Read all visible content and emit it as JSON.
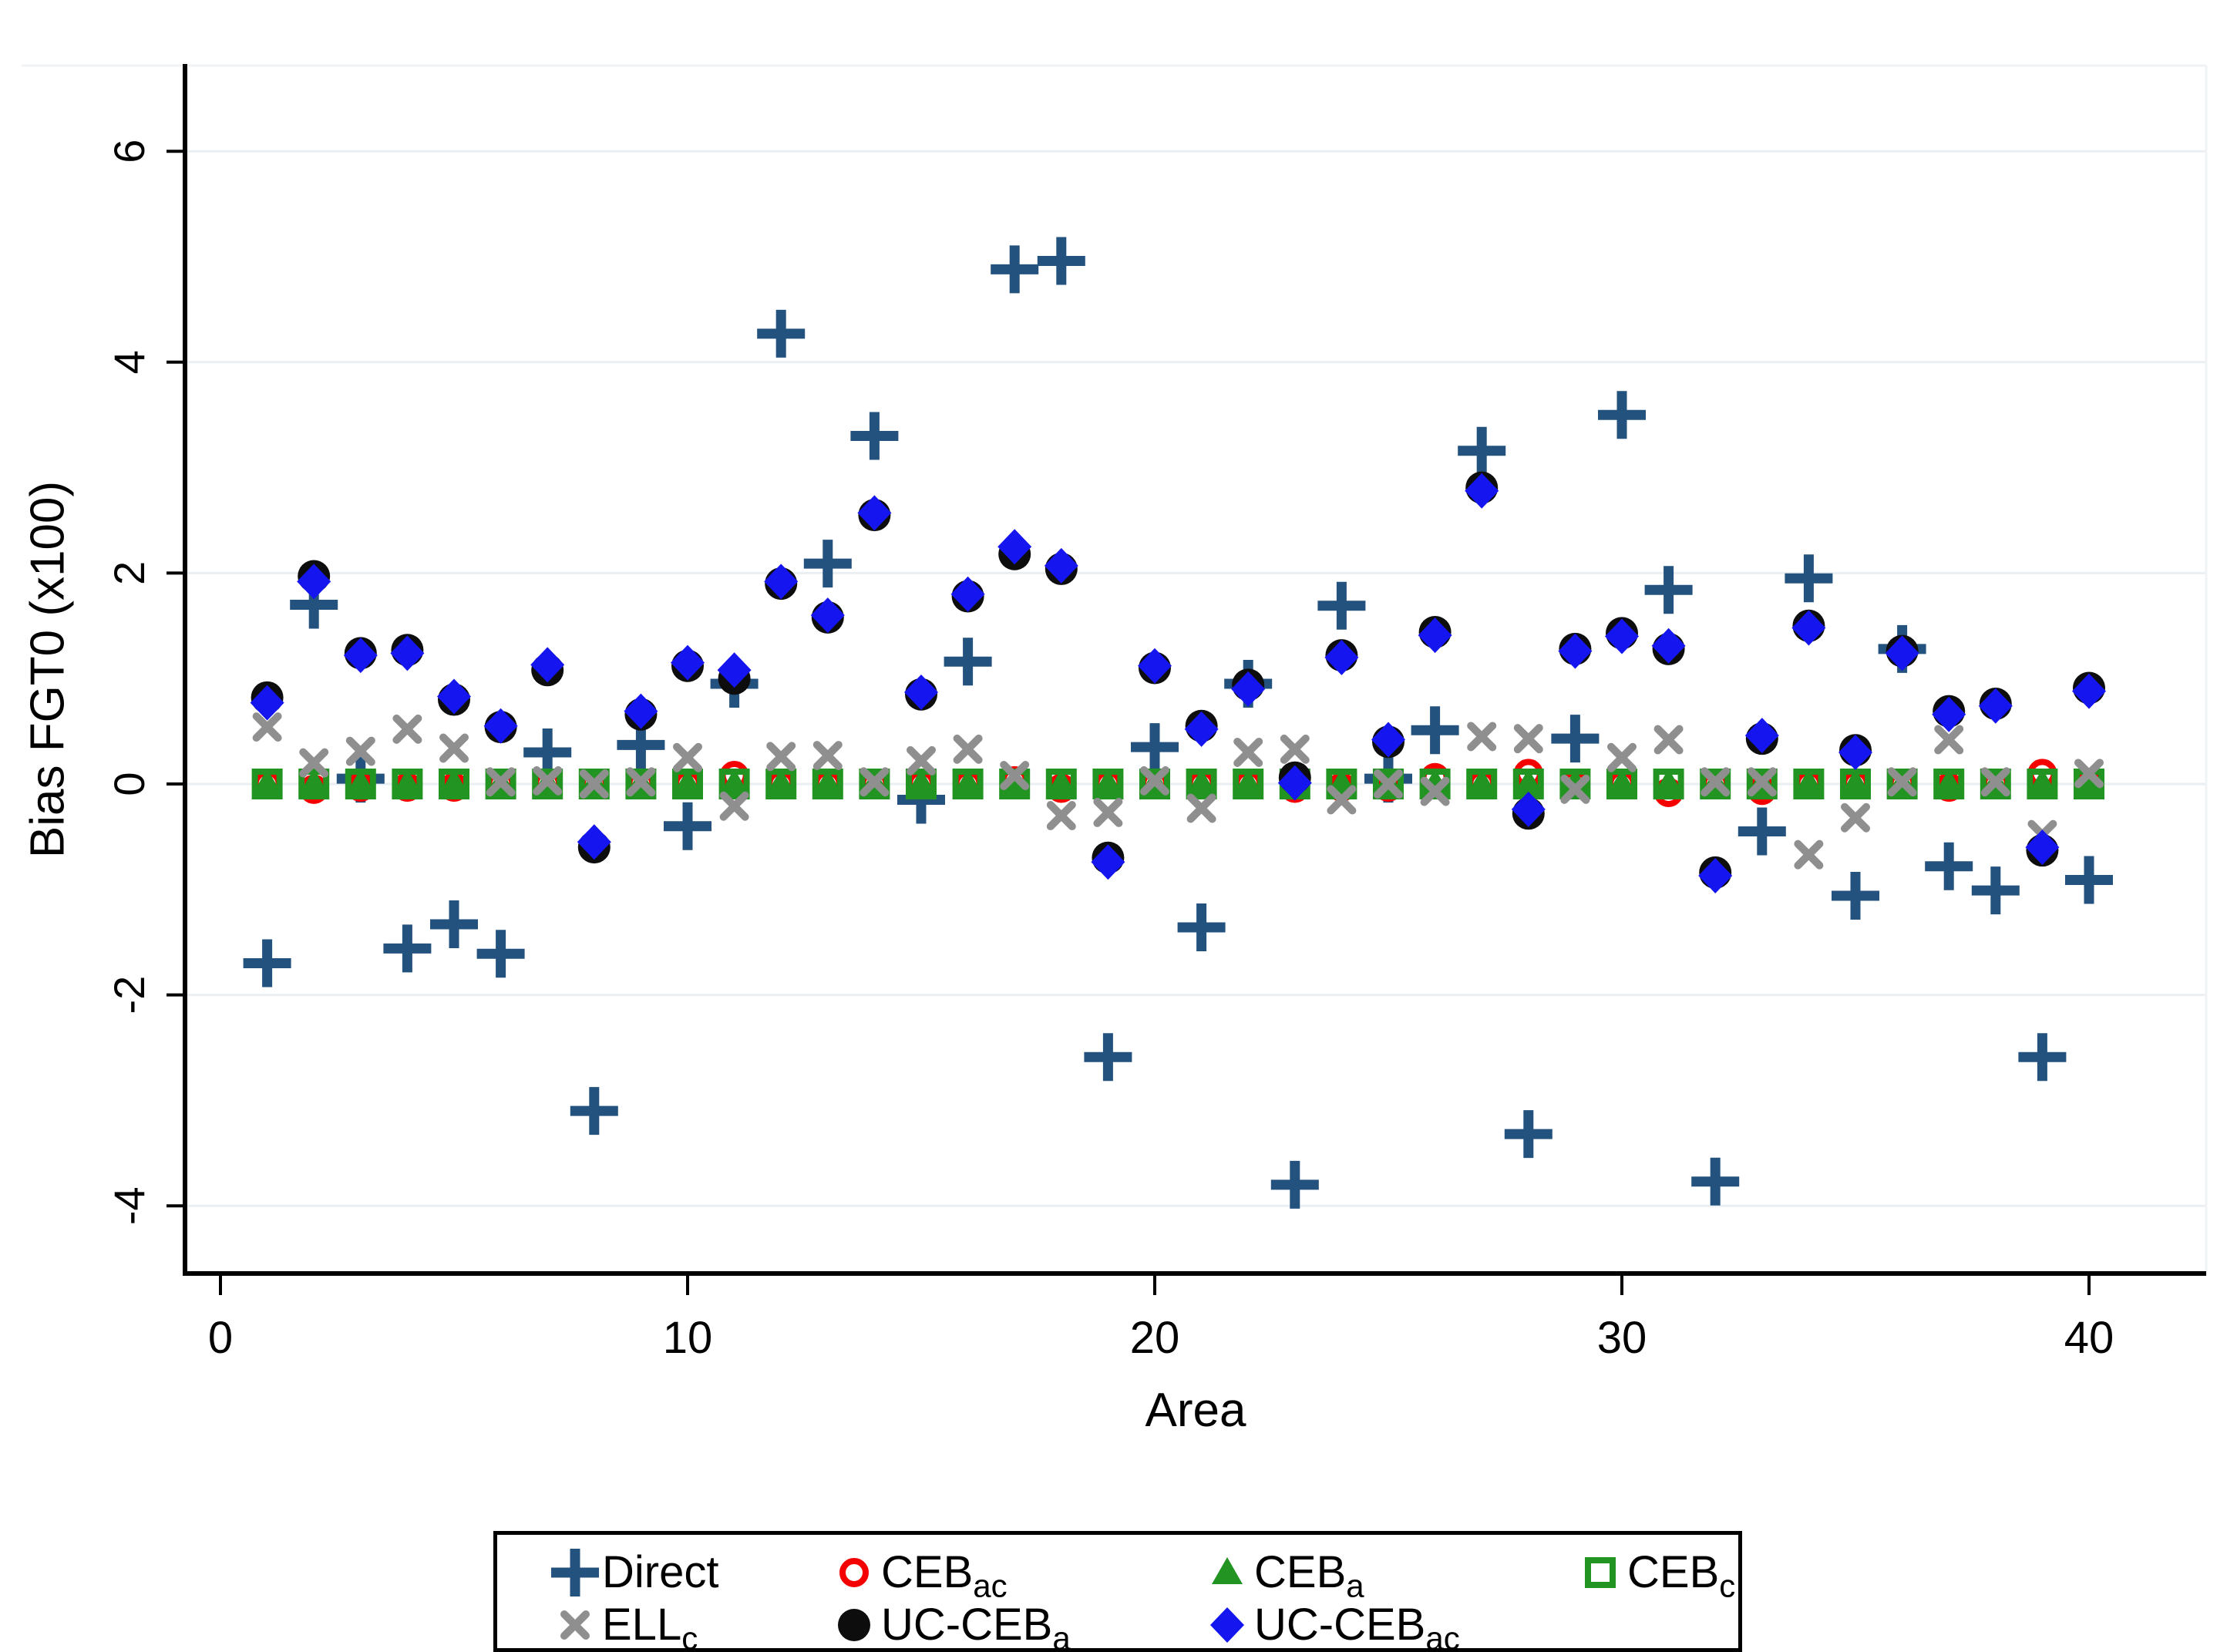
{
  "figure": {
    "kind": "stata-style scatter plot",
    "background": "#ffffff"
  },
  "y_axis": {
    "title": "Bias FGT0 (x100)",
    "tick_labels": [
      "6",
      "4",
      "2",
      "0",
      "-2",
      "-4"
    ],
    "tick_values": [
      6,
      4,
      2,
      0,
      -2,
      -4
    ]
  },
  "x_axis": {
    "title": "Area",
    "tick_labels": [
      "0",
      "10",
      "20",
      "30",
      "40"
    ],
    "tick_values": [
      0,
      10,
      20,
      30,
      40
    ]
  },
  "legend": {
    "items": [
      {
        "key": "direct",
        "base": "Direct",
        "sub": ""
      },
      {
        "key": "ceb_ac",
        "base": "CEB",
        "sub": "ac"
      },
      {
        "key": "ceb_a",
        "base": "CEB",
        "sub": "a"
      },
      {
        "key": "ceb_c",
        "base": "CEB",
        "sub": "c"
      },
      {
        "key": "ell_c",
        "base": "ELL",
        "sub": "c"
      },
      {
        "key": "uc_ceb_a",
        "base": "UC-CEB",
        "sub": "a"
      },
      {
        "key": "uc_ceb_ac",
        "base": "UC-CEB",
        "sub": "ac"
      }
    ]
  },
  "chart_data": {
    "type": "scatter",
    "title": "",
    "xlabel": "Area",
    "ylabel": "Bias FGT0 (x100)",
    "xlim": [
      0,
      41
    ],
    "ylim": [
      -4.6,
      6.3
    ],
    "grid": "horizontal",
    "gridline_values": [
      6,
      4,
      2,
      0,
      -2,
      -4
    ],
    "legend_position": "below",
    "x": [
      1,
      2,
      3,
      4,
      5,
      6,
      7,
      8,
      9,
      10,
      11,
      12,
      13,
      14,
      15,
      16,
      17,
      18,
      19,
      20,
      21,
      22,
      23,
      24,
      25,
      26,
      27,
      28,
      29,
      30,
      31,
      32,
      33,
      34,
      35,
      36,
      37,
      38,
      39,
      40
    ],
    "series": [
      {
        "name": "Direct",
        "key": "direct",
        "marker": "plus",
        "color": "#24527e",
        "values": [
          -1.7,
          1.7,
          0.05,
          -1.56,
          -1.33,
          -1.61,
          0.3,
          -3.1,
          0.37,
          -0.4,
          0.95,
          4.27,
          2.09,
          3.3,
          -0.15,
          1.16,
          4.88,
          4.96,
          -2.59,
          0.35,
          -1.36,
          0.95,
          -3.8,
          1.69,
          0.05,
          0.51,
          3.16,
          -3.32,
          0.43,
          3.5,
          1.84,
          -3.77,
          -0.45,
          1.95,
          -1.06,
          1.28,
          -0.78,
          -1.01,
          -2.59,
          -0.91
        ]
      },
      {
        "name": "CEB_ac",
        "key": "ceb_ac",
        "marker": "circle_open",
        "color": "#f40000",
        "values": [
          0.0,
          -0.05,
          -0.03,
          -0.03,
          -0.03,
          0.0,
          0.0,
          0.0,
          0.0,
          0.0,
          0.08,
          0.0,
          0.0,
          0.0,
          0.0,
          0.0,
          0.03,
          -0.04,
          0.0,
          0.0,
          0.0,
          0.0,
          -0.04,
          -0.03,
          -0.03,
          0.06,
          0.0,
          0.1,
          0.0,
          0.0,
          -0.08,
          0.0,
          -0.06,
          0.0,
          0.0,
          0.0,
          -0.03,
          0.0,
          0.1,
          0.0
        ]
      },
      {
        "name": "CEB_a",
        "key": "ceb_a",
        "marker": "triangle",
        "color": "#219421",
        "values": [
          0.0,
          0.0,
          0.0,
          0.0,
          0.0,
          0.0,
          0.0,
          0.0,
          0.0,
          0.0,
          0.0,
          0.0,
          0.0,
          0.0,
          0.0,
          0.0,
          0.0,
          0.0,
          0.0,
          0.0,
          0.0,
          0.0,
          0.0,
          0.0,
          0.0,
          0.0,
          0.0,
          0.0,
          0.0,
          0.0,
          0.0,
          0.0,
          0.0,
          0.0,
          0.0,
          0.0,
          0.0,
          0.0,
          0.0,
          0.0
        ]
      },
      {
        "name": "CEB_c",
        "key": "ceb_c",
        "marker": "square_open",
        "color": "#219421",
        "values": [
          0.0,
          0.0,
          0.0,
          0.0,
          0.0,
          0.0,
          0.0,
          0.0,
          0.0,
          0.0,
          0.0,
          0.0,
          0.0,
          0.0,
          0.0,
          0.0,
          0.0,
          0.0,
          0.0,
          0.0,
          0.0,
          0.0,
          0.0,
          0.0,
          0.0,
          0.0,
          0.0,
          0.0,
          0.0,
          0.0,
          0.0,
          0.0,
          0.0,
          0.0,
          0.0,
          0.0,
          0.0,
          0.0,
          0.0,
          0.0
        ]
      },
      {
        "name": "ELL_c",
        "key": "ell_c",
        "marker": "x",
        "color": "#8f8f8f",
        "values": [
          0.54,
          0.2,
          0.31,
          0.52,
          0.34,
          0.02,
          0.03,
          0.0,
          0.02,
          0.25,
          -0.21,
          0.26,
          0.27,
          0.02,
          0.22,
          0.33,
          0.08,
          -0.3,
          -0.27,
          0.03,
          -0.23,
          0.3,
          0.33,
          -0.15,
          0.0,
          -0.07,
          0.45,
          0.43,
          -0.05,
          0.25,
          0.42,
          0.02,
          0.02,
          -0.67,
          -0.32,
          0.02,
          0.42,
          0.02,
          -0.48,
          0.1
        ]
      },
      {
        "name": "UC-CEB_a",
        "key": "uc_ceb_a",
        "marker": "circle_fill",
        "color": "#0d0d0d",
        "values": [
          0.82,
          1.97,
          1.24,
          1.27,
          0.8,
          0.54,
          1.08,
          -0.6,
          0.66,
          1.12,
          1.0,
          1.9,
          1.58,
          2.55,
          0.85,
          1.78,
          2.18,
          2.04,
          -0.7,
          1.1,
          0.55,
          0.94,
          0.06,
          1.22,
          0.4,
          1.44,
          2.81,
          -0.28,
          1.28,
          1.43,
          1.28,
          -0.84,
          0.43,
          1.5,
          0.32,
          1.26,
          0.69,
          0.76,
          -0.63,
          0.91
        ]
      },
      {
        "name": "UC-CEB_ac",
        "key": "uc_ceb_ac",
        "marker": "diamond",
        "color": "#1515f0",
        "values": [
          0.77,
          1.92,
          1.22,
          1.24,
          0.83,
          0.55,
          1.13,
          -0.55,
          0.69,
          1.15,
          1.08,
          1.92,
          1.6,
          2.57,
          0.87,
          1.8,
          2.25,
          2.07,
          -0.74,
          1.12,
          0.52,
          0.9,
          0.01,
          1.2,
          0.42,
          1.41,
          2.78,
          -0.24,
          1.26,
          1.4,
          1.31,
          -0.87,
          0.46,
          1.48,
          0.3,
          1.24,
          0.66,
          0.74,
          -0.6,
          0.88
        ]
      }
    ]
  }
}
